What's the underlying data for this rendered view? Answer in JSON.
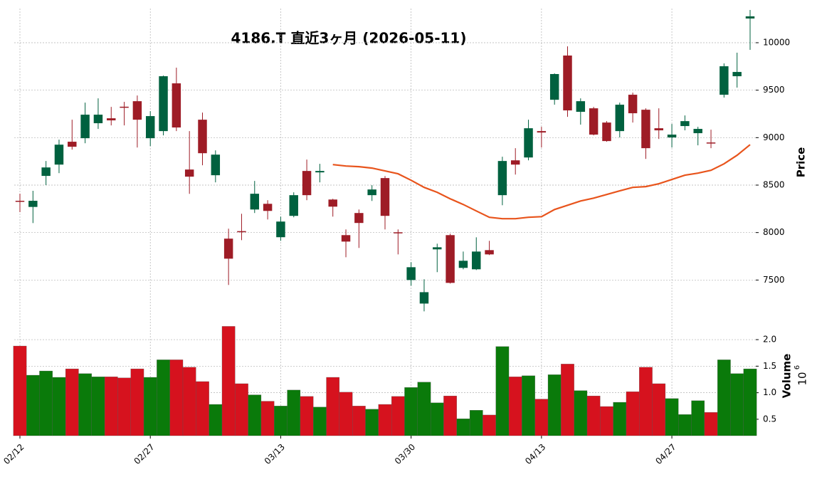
{
  "chart_data": {
    "type": "candlestick",
    "title": "4186.T  直近3ヶ月 (2026-05-11)",
    "categories": [
      "02/12",
      null,
      null,
      null,
      null,
      null,
      null,
      null,
      null,
      null,
      "02/27",
      null,
      null,
      null,
      null,
      null,
      null,
      null,
      null,
      null,
      "03/13",
      null,
      null,
      null,
      null,
      null,
      null,
      null,
      null,
      null,
      "03/30",
      null,
      null,
      null,
      null,
      null,
      null,
      null,
      null,
      null,
      "04/13",
      null,
      null,
      null,
      null,
      null,
      null,
      null,
      null,
      null,
      "04/27",
      null,
      null,
      null,
      null,
      null,
      null
    ],
    "open": [
      8335,
      8270,
      8597,
      8716,
      8957,
      8994,
      9152,
      9204,
      9326,
      9384,
      8994,
      9069,
      9572,
      8664,
      9189,
      8604,
      7936,
      8015,
      8243,
      8303,
      7951,
      8176,
      8649,
      8634,
      8348,
      7973,
      8206,
      8394,
      8574,
      8003,
      7500,
      7252,
      7823,
      7973,
      7628,
      7613,
      7815,
      8394,
      8761,
      8791,
      9069,
      9399,
      9865,
      9272,
      9309,
      9159,
      9069,
      9452,
      9294,
      9099,
      9002,
      9122,
      9047,
      8949,
      9452,
      9647,
      10255
    ],
    "high": [
      8410,
      8440,
      8754,
      8979,
      9189,
      9369,
      9414,
      9324,
      9377,
      9444,
      9279,
      9654,
      9737,
      9069,
      9264,
      8866,
      8041,
      8198,
      8544,
      8341,
      8168,
      8424,
      8769,
      8724,
      8356,
      8033,
      8243,
      8499,
      8596,
      8033,
      7688,
      7508,
      7883,
      7988,
      7800,
      7950,
      7913,
      8799,
      8889,
      9189,
      9114,
      9677,
      9962,
      9414,
      9324,
      9174,
      9369,
      9474,
      9309,
      9309,
      9144,
      9234,
      9114,
      9084,
      9782,
      9895,
      10345
    ],
    "low": [
      8215,
      8100,
      8500,
      8626,
      8874,
      8941,
      9092,
      9129,
      9129,
      8896,
      8911,
      9024,
      9069,
      8408,
      8709,
      8529,
      7448,
      7920,
      8206,
      8138,
      7913,
      8161,
      8341,
      8529,
      8168,
      7740,
      7838,
      8333,
      8033,
      7770,
      7440,
      7170,
      7583,
      7463,
      7613,
      7605,
      7763,
      8288,
      8611,
      8761,
      8896,
      9347,
      9219,
      9137,
      9024,
      8957,
      9002,
      9159,
      8776,
      8986,
      8896,
      9077,
      8919,
      8889,
      9422,
      9527,
      9925
    ],
    "close": [
      8330,
      8335,
      8686,
      8926,
      8904,
      9242,
      9242,
      9182,
      9320,
      9189,
      9227,
      9647,
      9107,
      8589,
      8836,
      8821,
      7725,
      8010,
      8409,
      8228,
      8116,
      8394,
      8394,
      8649,
      8273,
      7905,
      8101,
      8454,
      8176,
      7995,
      7635,
      7372,
      7845,
      7470,
      7703,
      7800,
      7770,
      8754,
      8716,
      9099,
      9054,
      9670,
      9287,
      9384,
      9032,
      8964,
      9347,
      9257,
      8889,
      9077,
      9032,
      9174,
      9092,
      8941,
      9752,
      9692,
      10278
    ],
    "up_color": "#00613f",
    "down_color": "#9e1c26",
    "ylim": [
      7150,
      10360
    ],
    "yticks": [
      7500,
      8000,
      8500,
      9000,
      9500,
      10000
    ],
    "ylabel": "Price",
    "grid": true,
    "moving_average": {
      "color": "#e8541c",
      "values": [
        null,
        null,
        null,
        null,
        null,
        null,
        null,
        null,
        null,
        null,
        null,
        null,
        null,
        null,
        null,
        null,
        null,
        null,
        null,
        null,
        null,
        null,
        null,
        null,
        8716,
        8701,
        8694,
        8679,
        8649,
        8619,
        8551,
        8476,
        8424,
        8356,
        8296,
        8228,
        8161,
        8146,
        8146,
        8161,
        8168,
        8243,
        8288,
        8333,
        8363,
        8401,
        8439,
        8476,
        8484,
        8514,
        8559,
        8604,
        8626,
        8656,
        8724,
        8814,
        8926
      ]
    },
    "volume": {
      "values": [
        1.88,
        1.33,
        1.41,
        1.29,
        1.45,
        1.36,
        1.3,
        1.3,
        1.28,
        1.45,
        1.29,
        1.62,
        1.62,
        1.48,
        1.21,
        0.78,
        2.25,
        1.17,
        0.96,
        0.84,
        0.75,
        1.05,
        0.93,
        0.73,
        1.29,
        1.01,
        0.75,
        0.69,
        0.78,
        0.93,
        1.1,
        1.2,
        0.81,
        0.94,
        0.51,
        0.67,
        0.58,
        1.87,
        1.3,
        1.32,
        0.88,
        1.34,
        1.54,
        1.04,
        0.94,
        0.74,
        0.82,
        1.02,
        1.48,
        1.17,
        0.89,
        0.59,
        0.85,
        0.63,
        1.62,
        1.36,
        1.45
      ],
      "up_color": "#0a7a0a",
      "down_color": "#d6121e",
      "ylim": [
        0.19,
        2.43
      ],
      "yticks": [
        0.5,
        {
          "value": 1.0,
          "label": "1.0"
        },
        1.5,
        {
          "value": 2.0,
          "label": "2.0"
        }
      ],
      "ylabel": "Volume",
      "scale_base": "10",
      "scale_power": "6"
    }
  }
}
